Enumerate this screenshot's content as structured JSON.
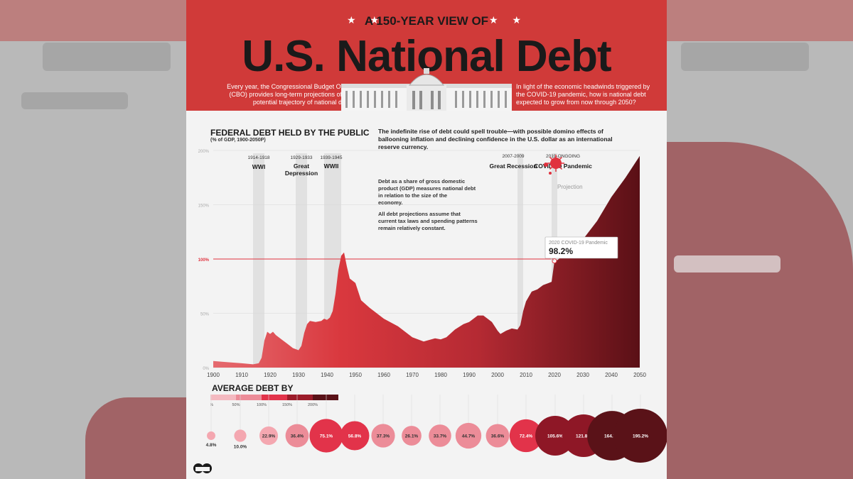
{
  "kicker": "A 150-YEAR VIEW OF",
  "title": "U.S. National Debt",
  "intro_left": "Every year, the Congressional Budget Office (CBO) provides long-term projections of the potential trajectory of national debt.",
  "intro_right": "In light of the economic headwinds triggered by the COVID-19 pandemic, how is national debt expected to grow from now through 2050?",
  "chart_title": "FEDERAL DEBT HELD BY THE PUBLIC",
  "chart_subtitle": "(% of GDP, 1900-2050P)",
  "lede": "The indefinite rise of debt could spell trouble—with possible domino effects of ballooning inflation and declining confidence in the U.S. dollar as an international reserve currency.",
  "note_1": "Debt as a share of gross domestic product (GDP) measures national debt in relation to the size of the economy.",
  "note_2": "All debt projections assume that current tax laws and spending patterns remain relatively constant.",
  "projection_label": "Projection",
  "callout": {
    "label": "2020 COVID-19 Pandemic",
    "value": "98.2%"
  },
  "events": [
    {
      "years": "1914-1918",
      "name": "WWI",
      "start": 1914,
      "end": 1918
    },
    {
      "years": "1929-1933",
      "name": "Great Depression",
      "start": 1929,
      "end": 1933
    },
    {
      "years": "1939-1945",
      "name": "WWII",
      "start": 1939,
      "end": 1945
    },
    {
      "years": "2007-2009",
      "name": "Great Recession",
      "start": 2007,
      "end": 2009
    },
    {
      "years": "2019-ONGOING",
      "name": "COVID-19 Pandemic",
      "start": 2019,
      "end": 2021
    }
  ],
  "legend": {
    "title": "AVERAGE DEBT BY",
    "ticks": [
      "0%",
      "50%",
      "100%",
      "150%",
      "200%"
    ],
    "colors": [
      "#f4b9c0",
      "#ec8c98",
      "#e2334a",
      "#9c1c2a",
      "#5a1218"
    ]
  },
  "chart_data": {
    "type": "area",
    "x_range": [
      1900,
      2050
    ],
    "ylim": [
      0,
      200
    ],
    "y_ticks": [
      "0%",
      "50%",
      "100%",
      "150%",
      "200%"
    ],
    "x_ticks": [
      1900,
      1910,
      1920,
      1930,
      1940,
      1950,
      1960,
      1970,
      1980,
      1990,
      2000,
      2010,
      2020,
      2030,
      2040,
      2050
    ],
    "reference_line": 100,
    "projection_start": 2020,
    "series": [
      {
        "x": [
          1900,
          1905,
          1910,
          1914,
          1916,
          1917,
          1918,
          1919,
          1920,
          1921,
          1922,
          1924,
          1926,
          1928,
          1930,
          1931,
          1932,
          1933,
          1934,
          1936,
          1938,
          1939,
          1940,
          1941,
          1942,
          1943,
          1944,
          1945,
          1946,
          1947,
          1948,
          1950,
          1952,
          1955,
          1960,
          1965,
          1970,
          1974,
          1978,
          1980,
          1982,
          1985,
          1988,
          1990,
          1993,
          1995,
          1998,
          2000,
          2001,
          2003,
          2005,
          2007,
          2008,
          2009,
          2010,
          2012,
          2014,
          2016,
          2018,
          2019,
          2020,
          2021,
          2025,
          2030,
          2035,
          2040,
          2045,
          2050
        ],
        "y": [
          6,
          5,
          4,
          3,
          4,
          9,
          25,
          33,
          31,
          33,
          30,
          26,
          22,
          18,
          16,
          20,
          32,
          40,
          43,
          42,
          43,
          45,
          44,
          46,
          52,
          68,
          90,
          103,
          106,
          93,
          82,
          78,
          62,
          55,
          45,
          38,
          28,
          24,
          27,
          26,
          28,
          35,
          40,
          42,
          48,
          48,
          42,
          34,
          31,
          34,
          36,
          35,
          39,
          52,
          61,
          70,
          72,
          76,
          78,
          79,
          98,
          99,
          107,
          118,
          135,
          157,
          175,
          195
        ]
      }
    ],
    "bubbles": [
      {
        "label": "4.8%",
        "value": 4.8
      },
      {
        "label": "10.0%",
        "value": 10.0
      },
      {
        "label": "22.9%",
        "value": 22.9
      },
      {
        "label": "36.4%",
        "value": 36.4
      },
      {
        "label": "75.1%",
        "value": 75.1
      },
      {
        "label": "56.8%",
        "value": 56.8
      },
      {
        "label": "37.3%",
        "value": 37.3
      },
      {
        "label": "26.1%",
        "value": 26.1
      },
      {
        "label": "33.7%",
        "value": 33.7
      },
      {
        "label": "44.7%",
        "value": 44.7
      },
      {
        "label": "36.6%",
        "value": 36.6
      },
      {
        "label": "72.4%",
        "value": 72.4
      },
      {
        "label": "105.6%",
        "value": 105.6
      },
      {
        "label": "121.8%",
        "value": 121.8
      },
      {
        "label": "164.7%",
        "value": 164.7
      },
      {
        "label": "195.2%",
        "value": 195.2
      }
    ]
  }
}
